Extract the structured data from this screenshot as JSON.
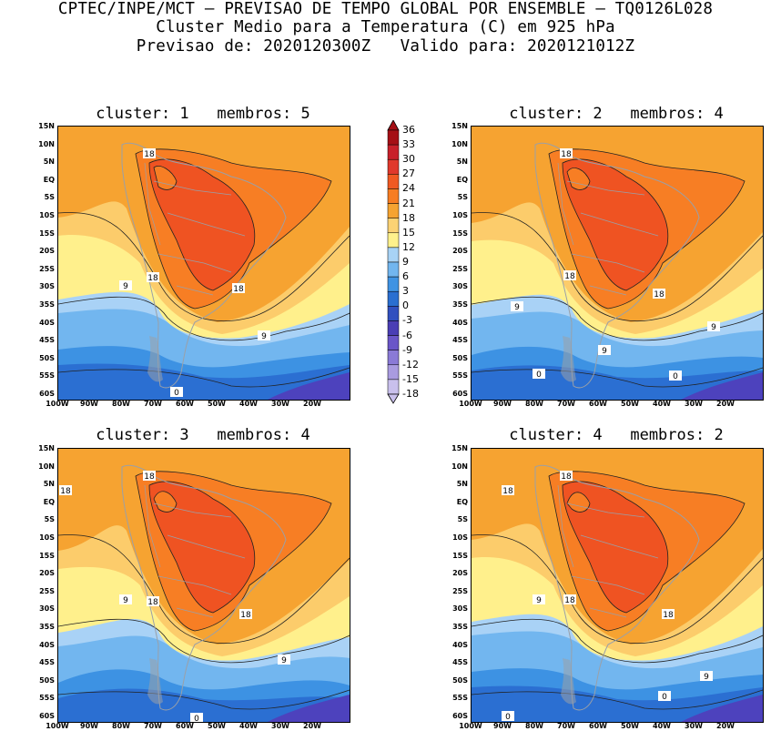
{
  "header": {
    "line1": "CPTEC/INPE/MCT – PREVISAO DE TEMPO GLOBAL POR ENSEMBLE – TQ0126L028",
    "line2": "Cluster Medio para a Temperatura (C) em 925 hPa",
    "line3": "Previsao de: 2020120300Z   Valido para: 2020121012Z"
  },
  "panels": [
    {
      "title": "cluster: 1   membros: 5",
      "labels": [
        "18",
        "18",
        "18",
        "9",
        "9",
        "0"
      ]
    },
    {
      "title": "cluster: 2   membros: 4",
      "labels": [
        "18",
        "18",
        "18",
        "9",
        "9",
        "9",
        "0",
        "0"
      ]
    },
    {
      "title": "cluster: 3   membros: 4",
      "labels": [
        "18",
        "18",
        "18",
        "18",
        "9",
        "9",
        "0"
      ]
    },
    {
      "title": "cluster: 4   membros: 2",
      "labels": [
        "18",
        "18",
        "18",
        "18",
        "9",
        "9",
        "0",
        "0"
      ]
    }
  ],
  "axes": {
    "lat_labels": [
      "15N",
      "10N",
      "5N",
      "EQ",
      "5S",
      "10S",
      "15S",
      "20S",
      "25S",
      "30S",
      "35S",
      "40S",
      "45S",
      "50S",
      "55S",
      "60S"
    ],
    "lon_labels": [
      "100W",
      "90W",
      "80W",
      "70W",
      "60W",
      "50W",
      "40W",
      "30W",
      "20W"
    ]
  },
  "colorbar": {
    "labels": [
      "36",
      "33",
      "30",
      "27",
      "24",
      "21",
      "18",
      "15",
      "12",
      "9",
      "6",
      "3",
      "0",
      "-3",
      "-6",
      "-9",
      "-12",
      "-15",
      "-18"
    ],
    "colors": [
      "#a50f15",
      "#c8202a",
      "#e0392c",
      "#f05a22",
      "#f77d22",
      "#f5a331",
      "#fbd274",
      "#fff18c",
      "#a8d3f5",
      "#72b6ef",
      "#3f93e3",
      "#2a6fd1",
      "#3150bf",
      "#4a3eb5",
      "#6a56c8",
      "#8a7ad6",
      "#a99be0",
      "#c9c0ec"
    ]
  },
  "map_colors": {
    "t24": "#ef5322",
    "t21": "#f77e24",
    "t18": "#f6a331",
    "t15": "#fccc6b",
    "t12": "#fff08c",
    "t9": "#a9d2f6",
    "t6": "#72b6ef",
    "t3": "#3d92e3",
    "t0": "#2b6fd2",
    "tm3": "#4d42bd",
    "land": "#9aa0a8"
  }
}
